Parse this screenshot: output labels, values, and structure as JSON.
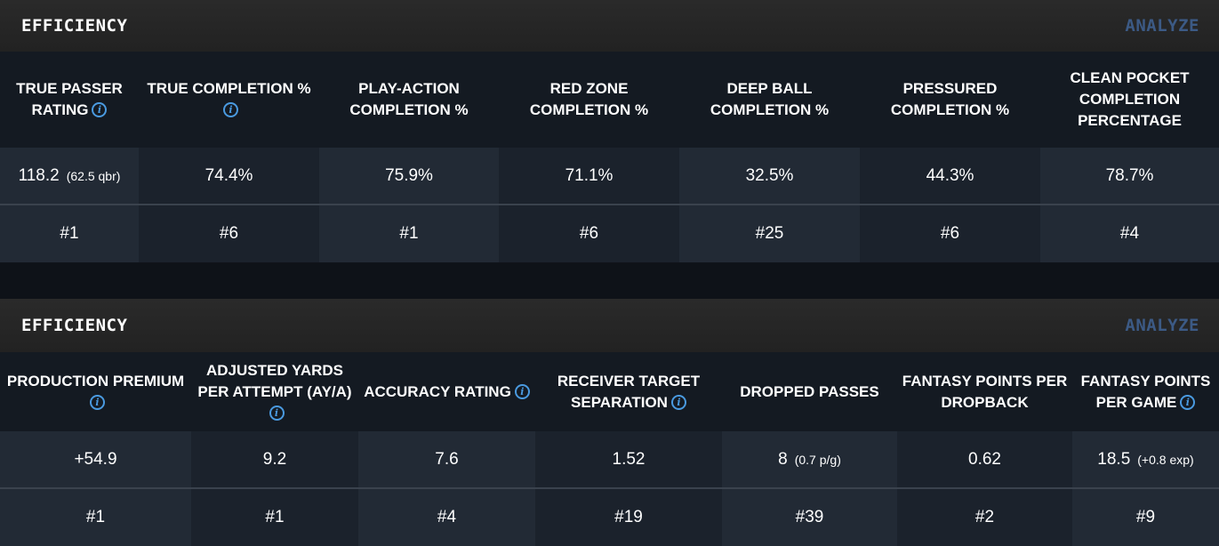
{
  "sections": [
    {
      "title": "EFFICIENCY",
      "analyze": "ANALYZE",
      "columns": [
        {
          "label": "TRUE PASSER RATING",
          "info": true,
          "value": "118.2",
          "sub": "(62.5 qbr)",
          "rank": "#1"
        },
        {
          "label": "TRUE COMPLETION %",
          "info": true,
          "value": "74.4%",
          "sub": "",
          "rank": "#6"
        },
        {
          "label": "PLAY-ACTION COMPLETION %",
          "info": false,
          "value": "75.9%",
          "sub": "",
          "rank": "#1"
        },
        {
          "label": "RED ZONE COMPLETION %",
          "info": false,
          "value": "71.1%",
          "sub": "",
          "rank": "#6"
        },
        {
          "label": "DEEP BALL COMPLETION %",
          "info": false,
          "value": "32.5%",
          "sub": "",
          "rank": "#25"
        },
        {
          "label": "PRESSURED COMPLETION %",
          "info": false,
          "value": "44.3%",
          "sub": "",
          "rank": "#6"
        },
        {
          "label": "CLEAN POCKET COMPLETION PERCENTAGE",
          "info": false,
          "value": "78.7%",
          "sub": "",
          "rank": "#4"
        }
      ]
    },
    {
      "title": "EFFICIENCY",
      "analyze": "ANALYZE",
      "columns": [
        {
          "label": "PRODUCTION PREMIUM",
          "info": true,
          "value": "+54.9",
          "sub": "",
          "rank": "#1"
        },
        {
          "label": "ADJUSTED YARDS PER ATTEMPT (AY/A)",
          "info": true,
          "value": "9.2",
          "sub": "",
          "rank": "#1"
        },
        {
          "label": "ACCURACY RATING",
          "info": true,
          "value": "7.6",
          "sub": "",
          "rank": "#4"
        },
        {
          "label": "RECEIVER TARGET SEPARATION",
          "info": true,
          "value": "1.52",
          "sub": "",
          "rank": "#19"
        },
        {
          "label": "DROPPED PASSES",
          "info": false,
          "value": "8",
          "sub": "(0.7 p/g)",
          "rank": "#39"
        },
        {
          "label": "FANTASY POINTS PER DROPBACK",
          "info": false,
          "value": "0.62",
          "sub": "",
          "rank": "#2"
        },
        {
          "label": "FANTASY POINTS PER GAME",
          "info": true,
          "value": "18.5",
          "sub": "(+0.8 exp)",
          "rank": "#9"
        }
      ]
    }
  ],
  "colors": {
    "accent_info": "#4a9ae0",
    "analyze_link": "#3c5a85",
    "header_bg": "#262626"
  },
  "icons": {
    "info": "info-icon"
  }
}
